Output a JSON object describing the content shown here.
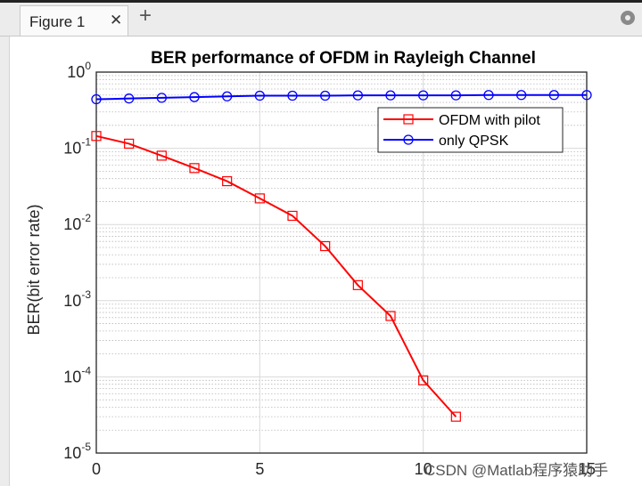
{
  "window": {
    "tab_label": "Figure 1",
    "close_glyph": "✕",
    "add_glyph": "+"
  },
  "watermark": "CSDN @Matlab程序猿助手",
  "chart_data": {
    "type": "line",
    "title": "BER performance of OFDM in Rayleigh Channel",
    "xlabel": "",
    "ylabel": "BER(bit error rate)",
    "xlim": [
      0,
      15
    ],
    "ylim": [
      1e-05,
      1
    ],
    "yscale": "log",
    "grid": true,
    "minor_grid": true,
    "legend_location": "top-right",
    "x_ticks": [
      0,
      5,
      10,
      15
    ],
    "x_tick_labels": [
      "0",
      "5",
      "10",
      "15"
    ],
    "y_ticks": [
      {
        "base": "10",
        "exp": "-5",
        "value": 1e-05
      },
      {
        "base": "10",
        "exp": "-4",
        "value": 0.0001
      },
      {
        "base": "10",
        "exp": "-3",
        "value": 0.001
      },
      {
        "base": "10",
        "exp": "-2",
        "value": 0.01
      },
      {
        "base": "10",
        "exp": "-1",
        "value": 0.1
      },
      {
        "base": "10",
        "exp": "0",
        "value": 1
      }
    ],
    "series": [
      {
        "name": "OFDM with pilot",
        "color": "#ff0000",
        "marker": "square",
        "x": [
          0,
          1,
          2,
          3,
          4,
          5,
          6,
          7,
          8,
          9,
          10,
          11
        ],
        "y": [
          0.145,
          0.115,
          0.08,
          0.055,
          0.037,
          0.022,
          0.013,
          0.0052,
          0.0016,
          0.00063,
          9e-05,
          3e-05
        ]
      },
      {
        "name": "only QPSK",
        "color": "#0000ff",
        "marker": "circle",
        "x": [
          0,
          1,
          2,
          3,
          4,
          5,
          6,
          7,
          8,
          9,
          10,
          11,
          12,
          13,
          14,
          15
        ],
        "y": [
          0.44,
          0.45,
          0.46,
          0.47,
          0.48,
          0.49,
          0.49,
          0.49,
          0.495,
          0.495,
          0.495,
          0.495,
          0.5,
          0.5,
          0.5,
          0.5
        ]
      }
    ]
  }
}
